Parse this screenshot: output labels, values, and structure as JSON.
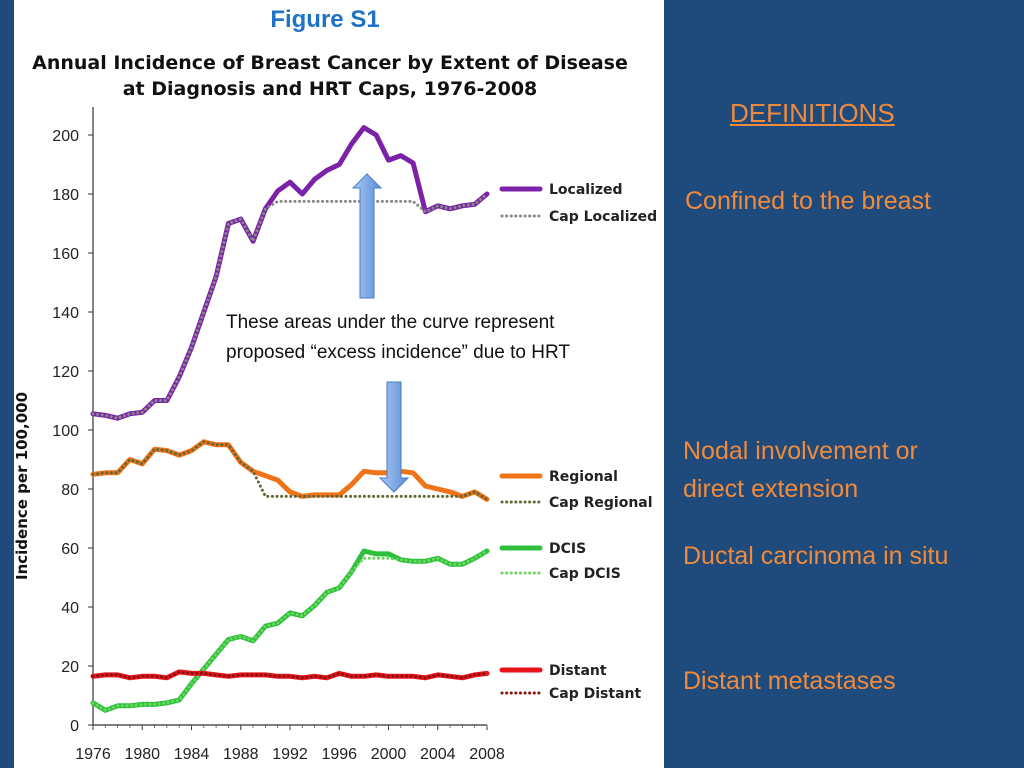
{
  "figure_label": "Figure S1",
  "chart_data": {
    "type": "line",
    "title_lines": [
      "Annual Incidence of Breast Cancer by Extent of Disease",
      "at Diagnosis and HRT Caps, 1976-2008"
    ],
    "ylabel": "Incidence per 100,000",
    "xlabel": "",
    "xlim": [
      1976,
      2008
    ],
    "ylim": [
      0,
      200
    ],
    "xticks": [
      "1976",
      "1980",
      "1984",
      "1988",
      "1992",
      "1996",
      "2000",
      "2004",
      "2008"
    ],
    "yticks": [
      "0",
      "20",
      "40",
      "60",
      "80",
      "100",
      "120",
      "140",
      "160",
      "180",
      "200"
    ],
    "x": [
      1976,
      1977,
      1978,
      1979,
      1980,
      1981,
      1982,
      1983,
      1984,
      1985,
      1986,
      1987,
      1988,
      1989,
      1990,
      1991,
      1992,
      1993,
      1994,
      1995,
      1996,
      1997,
      1998,
      1999,
      2000,
      2001,
      2002,
      2003,
      2004,
      2005,
      2006,
      2007,
      2008
    ],
    "series": [
      {
        "name": "Localized",
        "style": "solid",
        "color": "#7b22a8",
        "values": [
          105.5,
          105,
          104,
          105.5,
          106,
          110,
          110,
          118,
          128,
          140,
          152,
          170,
          171.5,
          164,
          175,
          181,
          184,
          180,
          185,
          188,
          190,
          197,
          202.5,
          200,
          191.5,
          193,
          190.5,
          174,
          176,
          175,
          176,
          176.5,
          180
        ]
      },
      {
        "name": "Cap Localized",
        "style": "dotted",
        "color": "#888888",
        "values": [
          105.5,
          105,
          104,
          105.5,
          106,
          110,
          110,
          118,
          128,
          140,
          152,
          170,
          171.5,
          164,
          175,
          177.5,
          177.5,
          177.5,
          177.5,
          177.5,
          177.5,
          177.5,
          177.5,
          177.5,
          177.5,
          177.5,
          177.5,
          174,
          176,
          175,
          176,
          176.5,
          180
        ]
      },
      {
        "name": "Regional",
        "style": "solid",
        "color": "#f07318",
        "values": [
          85,
          85.5,
          85.5,
          90,
          88.5,
          93.5,
          93,
          91.5,
          93,
          96,
          95,
          95,
          89,
          86,
          84.5,
          83,
          79,
          77.5,
          78,
          78,
          78,
          81.5,
          86,
          85.5,
          85.5,
          86,
          85.5,
          81,
          80,
          79,
          77.5,
          79,
          76.5
        ]
      },
      {
        "name": "Cap Regional",
        "style": "dotted",
        "color": "#666633",
        "values": [
          85,
          85.5,
          85.5,
          90,
          88.5,
          93.5,
          93,
          91.5,
          93,
          96,
          95,
          95,
          89,
          86,
          77.5,
          77.5,
          77.5,
          77.5,
          77.5,
          77.5,
          77.5,
          77.5,
          77.5,
          77.5,
          77.5,
          77.5,
          77.5,
          77.5,
          77.5,
          77.5,
          77.5,
          79,
          76.5
        ]
      },
      {
        "name": "DCIS",
        "style": "solid",
        "color": "#2fbf3a",
        "values": [
          7.5,
          5,
          6.5,
          6.5,
          7,
          7,
          7.5,
          8.5,
          14,
          19,
          24,
          29,
          30,
          28.5,
          33.5,
          34.5,
          38,
          37,
          40.5,
          45,
          46.5,
          52,
          59,
          58,
          58,
          56,
          55.5,
          55.5,
          56.5,
          54.5,
          54.5,
          56.5,
          59
        ]
      },
      {
        "name": "Cap DCIS",
        "style": "dotted",
        "color": "#6ad860",
        "values": [
          7.5,
          5,
          6.5,
          6.5,
          7,
          7,
          7.5,
          8.5,
          14,
          19,
          24,
          29,
          30,
          28.5,
          33.5,
          34.5,
          38,
          37,
          40.5,
          45,
          46.5,
          52,
          56.5,
          56.5,
          56.5,
          56,
          55.5,
          55.5,
          56.5,
          54.5,
          54.5,
          56.5,
          59
        ]
      },
      {
        "name": "Distant",
        "style": "solid",
        "color": "#e8141c",
        "values": [
          16.5,
          17,
          17,
          16,
          16.5,
          16.5,
          16,
          18,
          17.5,
          17.5,
          17,
          16.5,
          17,
          17,
          17,
          16.5,
          16.5,
          16,
          16.5,
          16,
          17.5,
          16.5,
          16.5,
          17,
          16.5,
          16.5,
          16.5,
          16,
          17,
          16.5,
          16,
          17,
          17.5
        ]
      },
      {
        "name": "Cap Distant",
        "style": "dotted",
        "color": "#8a1010",
        "values": [
          16.5,
          17,
          17,
          16,
          16.5,
          16.5,
          16,
          18,
          17.5,
          17.5,
          17,
          16.5,
          17,
          17,
          17,
          16.5,
          16.5,
          16,
          16.5,
          16,
          17.5,
          16.5,
          16.5,
          17,
          16.5,
          16.5,
          16.5,
          16,
          17,
          16.5,
          16,
          17,
          17.5
        ]
      }
    ],
    "legend_placement": "right",
    "grid": false
  },
  "annotation": {
    "lines": [
      "These areas under the curve represent",
      "proposed “excess incidence” due to HRT"
    ],
    "arrow_color": "#5b8fd8"
  },
  "definitions": {
    "heading": "DEFINITIONS",
    "localized": "Confined to the breast",
    "regional_line1": "Nodal involvement or",
    "regional_line2": "direct extension",
    "dcis": "Ductal carcinoma in situ",
    "distant": "Distant metastases"
  },
  "colors": {
    "background": "#1f4a7c",
    "definition_text": "#f28a3b",
    "figure_label": "#1f73c4"
  }
}
